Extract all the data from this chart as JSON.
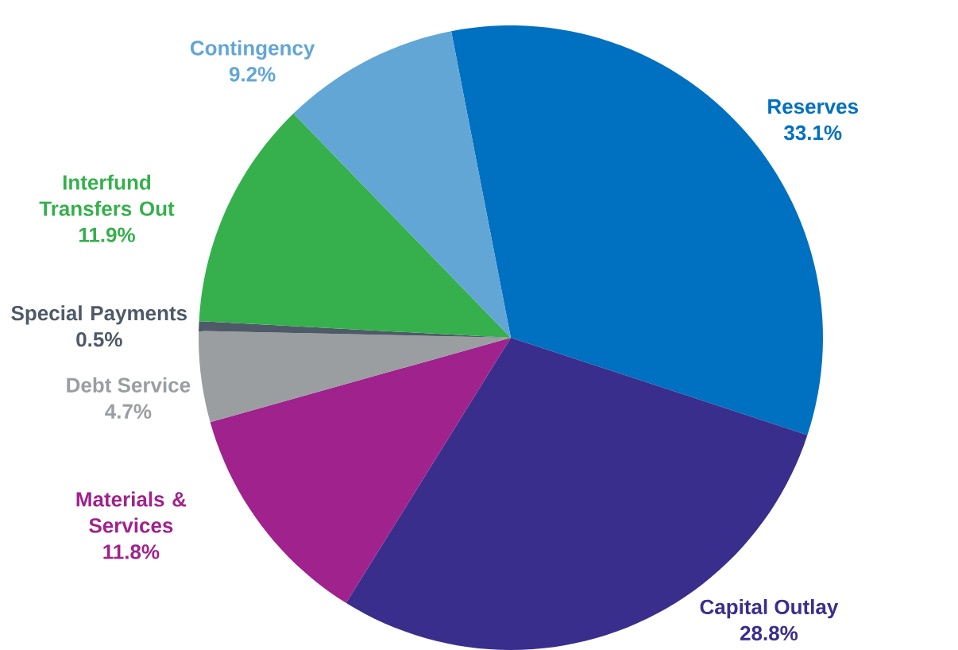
{
  "chart_data": {
    "type": "pie",
    "categories": [
      "Reserves",
      "Capital Outlay",
      "Materials & Services",
      "Debt Service",
      "Special Payments",
      "Interfund Transfers Out",
      "Contingency"
    ],
    "values": [
      33.1,
      28.8,
      11.8,
      4.7,
      0.5,
      11.9,
      9.2
    ],
    "colors": [
      "#0070c0",
      "#3a2e8c",
      "#a0228c",
      "#9a9ea1",
      "#4e5a68",
      "#35b04c",
      "#62a6d6"
    ],
    "value_labels": [
      "33.1%",
      "28.8%",
      "11.8%",
      "4.7%",
      "0.5%",
      "11.9%",
      "9.2%"
    ]
  }
}
